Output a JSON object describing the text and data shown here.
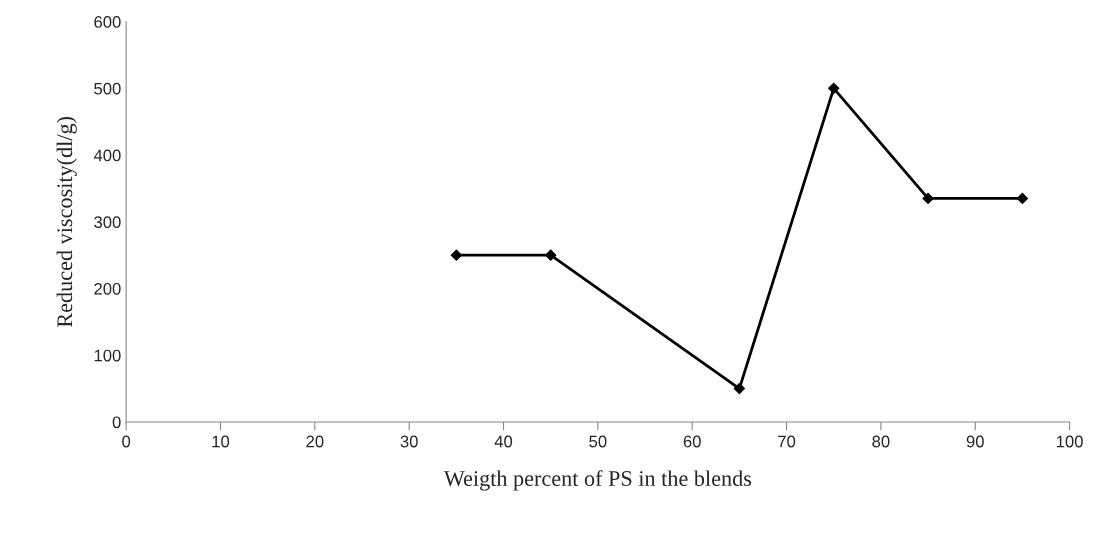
{
  "chart_data": {
    "type": "line",
    "xlabel": "Weigth percent of PS in the blends",
    "ylabel": "Reduced viscosity(dl/g)",
    "x": [
      35,
      45,
      65,
      75,
      85,
      95
    ],
    "series": [
      {
        "color": "#000000",
        "values": [
          250,
          250,
          50,
          500,
          335,
          335
        ]
      }
    ],
    "xlim": [
      0,
      100
    ],
    "xticks": [
      0,
      10,
      20,
      30,
      40,
      50,
      60,
      70,
      80,
      90,
      100
    ],
    "ylim": [
      0,
      600
    ],
    "yticks": [
      0,
      100,
      200,
      300,
      400,
      500,
      600
    ],
    "marker": "diamond",
    "line_style": "solid",
    "grid": false,
    "legend": false
  }
}
